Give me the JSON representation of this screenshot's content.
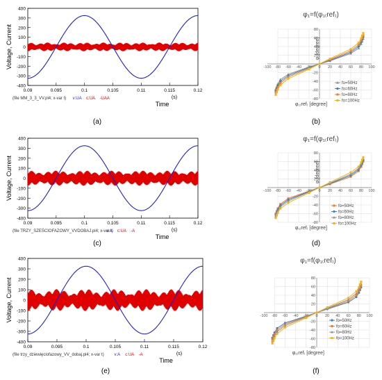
{
  "panels": [
    {
      "letter": "(a)",
      "chart_data": {
        "type": "line",
        "ylabel": "Voltage, Current",
        "xlabel": "Time",
        "unit_label": "(s)",
        "xlim": [
          0.09,
          0.12
        ],
        "ylim": [
          -400,
          400
        ],
        "xticks": [
          "0.09",
          "0.095",
          "0.1",
          "0.105",
          "0.11",
          "0.115",
          "0.12"
        ],
        "yticks": [
          "400",
          "300",
          "200",
          "100",
          "0",
          "-100",
          "-200",
          "-300",
          "-400"
        ],
        "footer_file": "(file MM_3_3_VV.pl4; x-var t)",
        "footer_legend": [
          {
            "text": "v:UA",
            "color": "#1f1fd0"
          },
          {
            "text": "c:UA",
            "color": "#e00000"
          },
          {
            "text": "-UAA",
            "color": "#e00000"
          }
        ],
        "series": [
          {
            "color": "#1f1fd0",
            "amplitude": 325,
            "frequency_hz": 50,
            "phase_deg": 90
          },
          {
            "color": "#e00000",
            "envelope_peak": 45,
            "envelope_trough": 25,
            "envelope_frequency_hz": 150,
            "switching": true
          }
        ]
      }
    },
    {
      "letter": "(c)",
      "chart_data": {
        "type": "line",
        "ylabel": "Voltage, Current",
        "xlabel": "Time",
        "unit_label": "(s)",
        "xlim": [
          0.09,
          0.12
        ],
        "ylim": [
          -400,
          400
        ],
        "xticks": [
          "0.09",
          "0.095",
          "0.1",
          "0.105",
          "0.11",
          "0.115",
          "0.12"
        ],
        "yticks": [
          "400",
          "300",
          "200",
          "100",
          "0",
          "-100",
          "-200",
          "-300",
          "-400"
        ],
        "footer_file": "(file TRZY_SZEŚCIOFAZOWY_VVDOBAJ.pl4; x-var t)",
        "footer_legend": [
          {
            "text": "v:A",
            "color": "#1f1fd0"
          },
          {
            "text": "c:UA",
            "color": "#e00000"
          },
          {
            "text": "-A",
            "color": "#e00000"
          }
        ],
        "series": [
          {
            "color": "#1f1fd0",
            "amplitude": 325,
            "frequency_hz": 50,
            "phase_deg": 90
          },
          {
            "color": "#e00000",
            "envelope_peak": 75,
            "envelope_trough": 45,
            "envelope_frequency_hz": 100,
            "switching": true
          }
        ]
      }
    },
    {
      "letter": "(e)",
      "chart_data": {
        "type": "line",
        "ylabel": "Voltage, Current",
        "xlabel": "Time",
        "unit_label": "(s)",
        "xlim": [
          0.09,
          0.12
        ],
        "ylim": [
          -400,
          400
        ],
        "xticks": [
          "0.09",
          "0.095",
          "0.1",
          "0.105",
          "0.11",
          "0.115",
          "0.12"
        ],
        "yticks": [
          "400",
          "300",
          "200",
          "100",
          "0",
          "-100",
          "-200",
          "-300",
          "-400"
        ],
        "footer_file": "(file trzy_dziewięciofazowy_VV_dobaj.pl4; x-var t)",
        "footer_legend": [
          {
            "text": "v:A",
            "color": "#1f1fd0"
          },
          {
            "text": "c:UA",
            "color": "#e00000"
          },
          {
            "text": "-A",
            "color": "#e00000"
          }
        ],
        "series": [
          {
            "color": "#1f1fd0",
            "amplitude": 325,
            "frequency_hz": 50,
            "phase_deg": 90
          },
          {
            "color": "#e00000",
            "envelope_peak": 105,
            "envelope_trough": 50,
            "envelope_frequency_hz": 100,
            "switching": true
          }
        ]
      }
    },
    {
      "letter": "(b)",
      "chart_data": {
        "type": "line",
        "title": "φ₁=f(φ₁₍ref₎)",
        "xlabel": "φ₁₍ref₎ [degree]",
        "ylabel": "φ₁[degree]",
        "xlim": [
          -100,
          100
        ],
        "ylim": [
          -80,
          80
        ],
        "xticks": [
          "-100",
          "-80",
          "-60",
          "-40",
          "-20",
          "0",
          "20",
          "40",
          "60",
          "80",
          "100"
        ],
        "yticks": [
          "80",
          "60",
          "40",
          "20",
          "0",
          "-20",
          "-40",
          "-60",
          "-80"
        ],
        "grid": true,
        "legend_position": "bottom-right",
        "series": [
          {
            "name": "fo=50Hz",
            "color": "#909090",
            "marker": "triangle",
            "x": [
              -84,
              -82,
              -80,
              -75,
              -60,
              -20,
              0,
              20,
              60,
              75,
              80,
              82,
              84
            ],
            "y": [
              -58,
              -52,
              -46,
              -36,
              -24,
              -7,
              0,
              7,
              24,
              36,
              46,
              52,
              58
            ]
          },
          {
            "name": "fo=60Hz",
            "color": "#3a7fc1",
            "marker": "circle",
            "x": [
              -84,
              -82,
              -80,
              -75,
              -60,
              -20,
              0,
              20,
              60,
              75,
              80,
              82,
              84
            ],
            "y": [
              -62,
              -56,
              -50,
              -40,
              -27,
              -8,
              0,
              8,
              27,
              40,
              50,
              56,
              62
            ]
          },
          {
            "name": "fo=80Hz",
            "color": "#f07b2a",
            "marker": "square",
            "x": [
              -84,
              -82,
              -80,
              -75,
              -60,
              -20,
              0,
              20,
              60,
              75,
              80,
              82,
              84
            ],
            "y": [
              -66,
              -60,
              -54,
              -44,
              -30,
              -10,
              0,
              10,
              30,
              44,
              54,
              60,
              66
            ]
          },
          {
            "name": "fo=100Hz",
            "color": "#f2b318",
            "marker": "square",
            "x": [
              -84,
              -82,
              -80,
              -75,
              -60,
              -20,
              0,
              20,
              60,
              75,
              80,
              82,
              84
            ],
            "y": [
              -71,
              -65,
              -59,
              -49,
              -34,
              -12,
              0,
              12,
              34,
              49,
              59,
              65,
              71
            ]
          }
        ]
      }
    },
    {
      "letter": "(d)",
      "chart_data": {
        "type": "line",
        "title": "φ₁=f(φ₁₍ref₎)",
        "xlabel": "φ₁₍ref₎ [degree]",
        "ylabel": "φ₁[degree]",
        "xlim": [
          -100,
          100
        ],
        "ylim": [
          -80,
          80
        ],
        "xticks": [
          "-100",
          "-80",
          "-60",
          "-40",
          "-20",
          "0",
          "20",
          "40",
          "60",
          "80",
          "100"
        ],
        "yticks": [
          "80",
          "60",
          "40",
          "20",
          "0",
          "-20",
          "-40",
          "-60",
          "-80"
        ],
        "grid": true,
        "legend_position": "bottom-right",
        "series": [
          {
            "name": "fo=50Hz",
            "color": "#f07b2a",
            "marker": "square",
            "x": [
              -84,
              -82,
              -80,
              -75,
              -60,
              -20,
              0,
              20,
              60,
              75,
              80,
              82,
              84
            ],
            "y": [
              -60,
              -54,
              -48,
              -38,
              -25,
              -8,
              0,
              8,
              25,
              38,
              48,
              54,
              60
            ]
          },
          {
            "name": "fo=60Hz",
            "color": "#3a7fc1",
            "marker": "circle",
            "x": [
              -84,
              -82,
              -80,
              -75,
              -60,
              -20,
              0,
              20,
              60,
              75,
              80,
              82,
              84
            ],
            "y": [
              -63,
              -57,
              -51,
              -41,
              -28,
              -9,
              0,
              9,
              28,
              41,
              51,
              57,
              63
            ]
          },
          {
            "name": "fo=80Hz",
            "color": "#909090",
            "marker": "triangle",
            "x": [
              -84,
              -82,
              -80,
              -75,
              -60,
              -20,
              0,
              20,
              60,
              75,
              80,
              82,
              84
            ],
            "y": [
              -66,
              -60,
              -54,
              -44,
              -31,
              -10,
              0,
              10,
              31,
              44,
              54,
              60,
              66
            ]
          },
          {
            "name": "fo=100Hz",
            "color": "#f2b318",
            "marker": "square",
            "x": [
              -84,
              -82,
              -80,
              -75,
              -60,
              -20,
              0,
              20,
              60,
              75,
              80,
              82,
              84
            ],
            "y": [
              -70,
              -64,
              -58,
              -48,
              -35,
              -12,
              0,
              12,
              35,
              48,
              58,
              64,
              70
            ]
          }
        ]
      }
    },
    {
      "letter": "(f)",
      "chart_data": {
        "type": "line",
        "title": "φ₁=f(φ₁₍ref₎)",
        "xlabel": "φ₁₍ref₎ [degree]",
        "ylabel": "",
        "xlim": [
          -100,
          100
        ],
        "ylim": [
          -80,
          80
        ],
        "xticks": [
          "-100",
          "-80",
          "-60",
          "-40",
          "-20",
          "0",
          "20",
          "40",
          "60",
          "80",
          "100"
        ],
        "yticks": [
          "80",
          "60",
          "40",
          "20",
          "0",
          "-20",
          "-40",
          "-60",
          "-80"
        ],
        "grid": true,
        "legend_position": "bottom-right",
        "series": [
          {
            "name": "fo=50Hz",
            "color": "#3a7fc1",
            "marker": "circle",
            "x": [
              -84,
              -82,
              -80,
              -75,
              -60,
              -20,
              0,
              20,
              60,
              75,
              80,
              82,
              84
            ],
            "y": [
              -58,
              -52,
              -46,
              -36,
              -24,
              -8,
              0,
              8,
              24,
              36,
              46,
              52,
              58
            ]
          },
          {
            "name": "fo=60Hz",
            "color": "#f07b2a",
            "marker": "square",
            "x": [
              -84,
              -82,
              -80,
              -75,
              -60,
              -20,
              0,
              20,
              60,
              75,
              80,
              82,
              84
            ],
            "y": [
              -62,
              -56,
              -50,
              -40,
              -27,
              -9,
              0,
              9,
              27,
              40,
              50,
              56,
              62
            ]
          },
          {
            "name": "fo=80Hz",
            "color": "#909090",
            "marker": "triangle",
            "x": [
              -84,
              -82,
              -80,
              -75,
              -60,
              -20,
              0,
              20,
              60,
              75,
              80,
              82,
              84
            ],
            "y": [
              -66,
              -60,
              -54,
              -44,
              -30,
              -10,
              0,
              10,
              30,
              44,
              54,
              60,
              66
            ]
          },
          {
            "name": "fo=100Hz",
            "color": "#f2b318",
            "marker": "square",
            "x": [
              -84,
              -82,
              -80,
              -75,
              -60,
              -20,
              0,
              20,
              60,
              75,
              80,
              82,
              84
            ],
            "y": [
              -71,
              -65,
              -59,
              -49,
              -34,
              -12,
              0,
              12,
              34,
              49,
              59,
              65,
              71
            ]
          }
        ]
      }
    }
  ]
}
